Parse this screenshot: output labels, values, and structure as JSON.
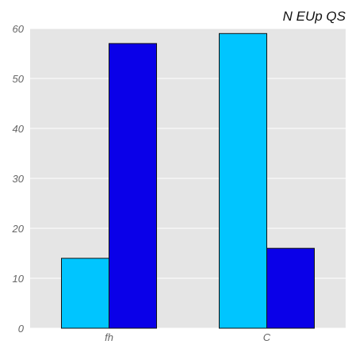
{
  "chart_data": {
    "type": "bar",
    "title": "N EUp QS",
    "xlabel": "",
    "ylabel": "",
    "categories": [
      "fh",
      "C"
    ],
    "series": [
      {
        "values": [
          14,
          59
        ],
        "color": "#00C5FF"
      },
      {
        "values": [
          57,
          16
        ],
        "color": "#0A00E8"
      }
    ],
    "ylim": [
      0,
      60
    ],
    "yticks": [
      0,
      10,
      20,
      30,
      40,
      50,
      60
    ],
    "grid": true,
    "background": "#E5E5E5"
  }
}
